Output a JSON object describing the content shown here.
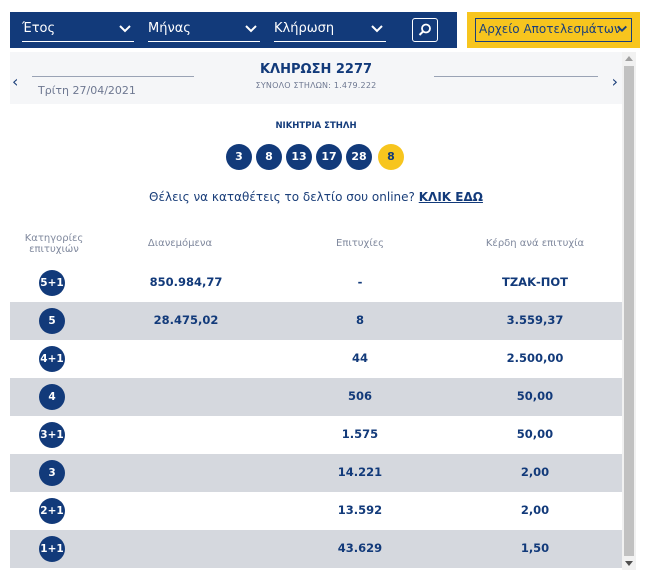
{
  "filters": {
    "year_label": "Έτος",
    "month_label": "Μήνας",
    "draw_label": "Κλήρωση",
    "archive_label": "Αρχείο Αποτελεσμάτων"
  },
  "draw": {
    "date": "Τρίτη 27/04/2021",
    "title": "ΚΛΗΡΩΣΗ 2277",
    "total_columns": "ΣΥΝΟΛΟ ΣΤΗΛΩΝ: 1.479.222",
    "prev_arrow": "‹",
    "next_arrow": "›"
  },
  "winning": {
    "label": "ΝΙΚΗΤΡΙΑ ΣΤΗΛΗ",
    "numbers": [
      "3",
      "8",
      "13",
      "17",
      "28"
    ],
    "joker": "8"
  },
  "cta": {
    "text": "Θέλεις να καταθέτεις το δελτίο σου online?",
    "link": "ΚΛΙΚ ΕΔΩ"
  },
  "table": {
    "headers": {
      "categories": "Κατηγορίες επιτυχιών",
      "distributed": "Διανεμόμενα",
      "wins": "Επιτυχίες",
      "prize": "Κέρδη ανά επιτυχία"
    },
    "rows": [
      {
        "cat": "5+1",
        "distributed": "850.984,77",
        "wins": "-",
        "prize": "ΤΖΑΚ-ΠΟΤ"
      },
      {
        "cat": "5",
        "distributed": "28.475,02",
        "wins": "8",
        "prize": "3.559,37"
      },
      {
        "cat": "4+1",
        "distributed": "",
        "wins": "44",
        "prize": "2.500,00"
      },
      {
        "cat": "4",
        "distributed": "",
        "wins": "506",
        "prize": "50,00"
      },
      {
        "cat": "3+1",
        "distributed": "",
        "wins": "1.575",
        "prize": "50,00"
      },
      {
        "cat": "3",
        "distributed": "",
        "wins": "14.221",
        "prize": "2,00"
      },
      {
        "cat": "2+1",
        "distributed": "",
        "wins": "13.592",
        "prize": "2,00"
      },
      {
        "cat": "1+1",
        "distributed": "",
        "wins": "43.629",
        "prize": "1,50"
      }
    ]
  },
  "colors": {
    "navy": "#123a7a",
    "yellow": "#f7c51e",
    "row_shade": "#d5d8de"
  },
  "icons": {
    "search": "search-icon",
    "dropdown": "chevron-down-icon"
  }
}
